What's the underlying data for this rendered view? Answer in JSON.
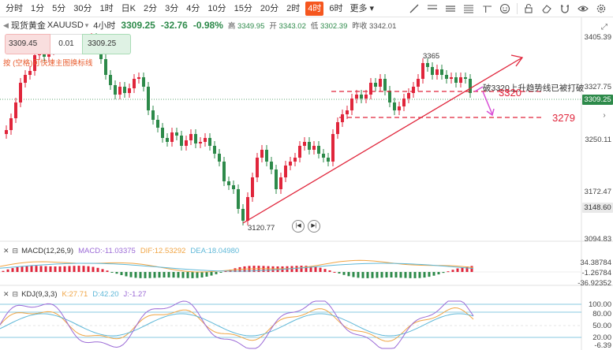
{
  "toolbar": {
    "timeframes": [
      "分时",
      "1分",
      "5分",
      "30分",
      "1时",
      "日K",
      "2分",
      "3分",
      "4分",
      "10分",
      "15分",
      "20分",
      "2时",
      "4时",
      "6时"
    ],
    "active_timeframe": "4时",
    "more_label": "更多",
    "tools": [
      "trendline-icon",
      "ray-icon",
      "horizontal-line-icon",
      "channel-icon",
      "text-icon",
      "emoji-icon",
      "lock-icon",
      "eraser-icon",
      "magnet-icon",
      "eye-icon",
      "settings-icon"
    ]
  },
  "symbol": {
    "name": "现货黄金",
    "code": "XAUUSD",
    "period": "4小时",
    "price": "3309.25",
    "change": "-32.76",
    "change_pct": "-0.98%",
    "high_label": "高",
    "high": "3349.95",
    "open_label": "开",
    "open": "3343.02",
    "low_label": "低",
    "low": "3302.39",
    "prev_close_label": "昨收",
    "prev_close": "3342.01"
  },
  "trade": {
    "sell_price": "3309.45",
    "quantity": "0.01",
    "buy_price": "3309.25"
  },
  "hint": "按 (空格)可快速主图换标线",
  "price_axis": {
    "labels": [
      "3405.39",
      "3327.75",
      "3250.11",
      "3172.47",
      "3094.83"
    ],
    "current_price": "3309.25",
    "marker_price": "3148.60"
  },
  "annotations": {
    "high_label": "3365",
    "low_label": "3120.77",
    "note": "破3320上升趋势线已被打破",
    "level_3320": "3320",
    "level_3279": "3279"
  },
  "macd": {
    "name": "MACD(12,26,9)",
    "macd_label": "MACD:",
    "macd_value": "-11.03375",
    "dif_label": "DIF:",
    "dif_value": "12.53292",
    "dea_label": "DEA:",
    "dea_value": "18.04980",
    "axis": [
      "34.38784",
      "-1.26784",
      "-36.92352"
    ]
  },
  "kdj": {
    "name": "KDJ(9,3,3)",
    "k_label": "K:",
    "k_value": "27.71",
    "d_label": "D:",
    "d_value": "42.20",
    "j_label": "J:",
    "j_value": "-1.27",
    "axis": [
      "100.00",
      "80.00",
      "50.00",
      "20.00",
      "-6.39"
    ]
  },
  "colors": {
    "up": "#e0253b",
    "down": "#2d8a4a",
    "active": "#f5561e",
    "trendline": "#e0253b",
    "arrow": "#d94fd6",
    "macd_dif": "#f0a545",
    "macd_dea": "#5fb8d8",
    "kdj_k": "#f0a545",
    "kdj_d": "#5fb8d8",
    "kdj_j": "#9b6ad6"
  }
}
